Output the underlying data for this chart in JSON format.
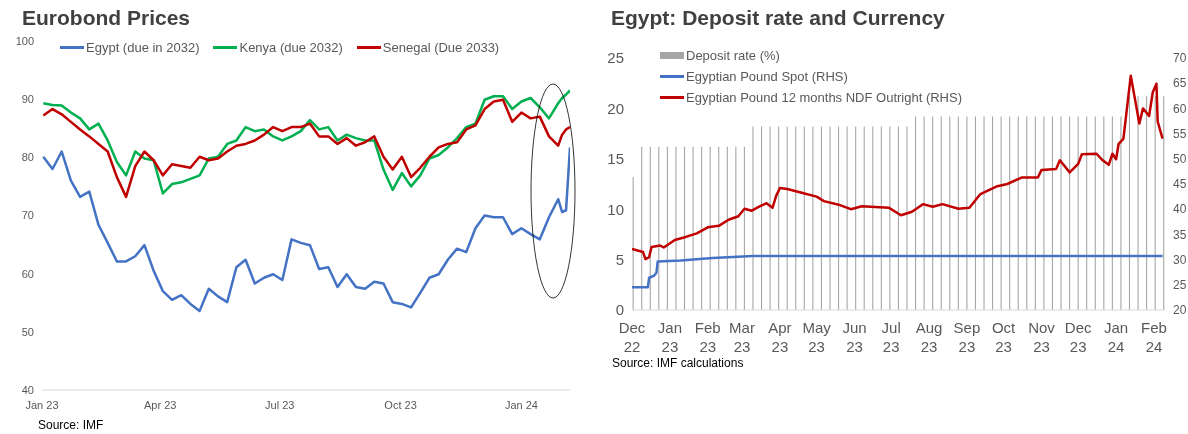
{
  "chart_data": [
    {
      "type": "line",
      "title": "Eurobond Prices",
      "x": [
        "2023-01-02",
        "2023-01-09",
        "2023-01-16",
        "2023-01-23",
        "2023-01-30",
        "2023-02-06",
        "2023-02-13",
        "2023-02-20",
        "2023-02-27",
        "2023-03-06",
        "2023-03-13",
        "2023-03-20",
        "2023-03-27",
        "2023-04-03",
        "2023-04-10",
        "2023-04-17",
        "2023-04-24",
        "2023-05-01",
        "2023-05-08",
        "2023-05-15",
        "2023-05-22",
        "2023-05-29",
        "2023-06-05",
        "2023-06-12",
        "2023-06-19",
        "2023-06-26",
        "2023-07-03",
        "2023-07-10",
        "2023-07-17",
        "2023-07-24",
        "2023-07-31",
        "2023-08-07",
        "2023-08-14",
        "2023-08-21",
        "2023-08-28",
        "2023-09-04",
        "2023-09-11",
        "2023-09-18",
        "2023-09-25",
        "2023-10-02",
        "2023-10-09",
        "2023-10-16",
        "2023-10-23",
        "2023-10-30",
        "2023-11-06",
        "2023-11-13",
        "2023-11-20",
        "2023-11-27",
        "2023-12-04",
        "2023-12-11",
        "2023-12-18",
        "2023-12-25",
        "2024-01-01",
        "2024-01-08",
        "2024-01-15",
        "2024-01-22",
        "2024-01-29",
        "2024-02-01",
        "2024-02-04",
        "2024-02-07"
      ],
      "series": [
        {
          "name": "Egypt (due in 2032)",
          "color": "#4472c4",
          "values": [
            80.1,
            78.0,
            81.0,
            76.0,
            73.2,
            74.1,
            68.4,
            65.3,
            62.1,
            62.1,
            63.0,
            64.9,
            60.5,
            57.0,
            55.5,
            56.3,
            54.8,
            53.6,
            57.4,
            56.1,
            55.1,
            61.1,
            62.4,
            58.3,
            59.3,
            59.9,
            58.9,
            65.9,
            65.3,
            64.9,
            60.8,
            61.1,
            57.7,
            59.9,
            57.7,
            57.4,
            58.6,
            58.3,
            55.1,
            54.8,
            54.2,
            56.7,
            59.3,
            59.9,
            62.4,
            64.3,
            63.7,
            67.8,
            70.0,
            69.7,
            69.7,
            66.8,
            67.8,
            66.8,
            65.9,
            69.7,
            72.8,
            70.6,
            70.9,
            81.7
          ]
        },
        {
          "name": "Kenya (due 2032)",
          "color": "#00b050",
          "values": [
            89.3,
            89.0,
            88.9,
            87.7,
            86.7,
            84.8,
            85.8,
            82.9,
            79.2,
            76.9,
            81.0,
            79.8,
            79.5,
            73.8,
            75.4,
            75.7,
            76.3,
            76.9,
            79.8,
            80.1,
            82.3,
            82.9,
            85.2,
            84.5,
            84.8,
            83.6,
            82.9,
            83.6,
            84.5,
            86.4,
            84.8,
            85.2,
            82.9,
            83.9,
            83.3,
            82.9,
            82.9,
            77.9,
            74.4,
            77.3,
            75.0,
            76.9,
            79.8,
            80.4,
            81.7,
            83.3,
            85.2,
            85.8,
            89.9,
            90.5,
            90.5,
            88.3,
            89.6,
            90.2,
            88.6,
            86.7,
            89.3,
            90.2,
            90.8,
            91.5
          ]
        },
        {
          "name": "Senegal (Due 2033)",
          "color": "#c00000",
          "values": [
            87.2,
            88.3,
            87.4,
            86.1,
            84.8,
            83.6,
            82.3,
            81.0,
            76.6,
            73.2,
            78.5,
            81.0,
            79.5,
            76.9,
            78.8,
            78.5,
            78.2,
            80.1,
            79.5,
            79.8,
            81.0,
            82.0,
            82.3,
            82.9,
            83.9,
            85.2,
            84.5,
            85.2,
            85.2,
            85.8,
            83.6,
            83.6,
            82.3,
            83.3,
            82.0,
            82.6,
            83.6,
            80.1,
            77.9,
            80.1,
            76.6,
            78.2,
            80.1,
            81.7,
            82.3,
            82.6,
            84.8,
            85.5,
            88.3,
            89.6,
            89.9,
            86.1,
            87.7,
            86.7,
            87.0,
            83.6,
            82.0,
            83.9,
            84.8,
            85.2
          ]
        }
      ],
      "xlim": [
        "2023-01-01",
        "2024-02-07"
      ],
      "xticks": [
        {
          "value": "2023-01-01",
          "label": "Jan 23"
        },
        {
          "value": "2023-04-01",
          "label": "Apr 23"
        },
        {
          "value": "2023-07-01",
          "label": "Jul 23"
        },
        {
          "value": "2023-10-01",
          "label": "Oct 23"
        },
        {
          "value": "2024-01-01",
          "label": "Jan 24"
        }
      ],
      "ylim": [
        40,
        100
      ],
      "yticks": [
        40,
        50,
        60,
        70,
        80,
        90,
        100
      ],
      "legend": "top",
      "annotations": [
        "Source: IMF"
      ]
    },
    {
      "type": "bar",
      "title": "Egypt: Deposit rate and Currency",
      "series": [
        {
          "name": "Deposit rate (%)",
          "color": "#a6a6a6",
          "x": [
            "2022-12-02",
            "2022-12-09",
            "2022-12-16",
            "2022-12-23",
            "2022-12-30",
            "2023-01-06",
            "2023-01-13",
            "2023-01-20",
            "2023-01-27",
            "2023-02-03",
            "2023-02-10",
            "2023-02-17",
            "2023-02-24",
            "2023-03-03",
            "2023-03-10",
            "2023-03-17",
            "2023-03-24",
            "2023-03-31",
            "2023-04-07",
            "2023-04-14",
            "2023-04-21",
            "2023-04-28",
            "2023-05-05",
            "2023-05-12",
            "2023-05-19",
            "2023-05-26",
            "2023-06-02",
            "2023-06-09",
            "2023-06-16",
            "2023-06-23",
            "2023-06-30",
            "2023-07-07",
            "2023-07-14",
            "2023-07-21",
            "2023-07-28",
            "2023-08-04",
            "2023-08-11",
            "2023-08-18",
            "2023-08-25",
            "2023-09-01",
            "2023-09-08",
            "2023-09-15",
            "2023-09-22",
            "2023-09-29",
            "2023-10-06",
            "2023-10-13",
            "2023-10-20",
            "2023-10-27",
            "2023-11-03",
            "2023-11-10",
            "2023-11-17",
            "2023-11-24",
            "2023-12-01",
            "2023-12-08",
            "2023-12-15",
            "2023-12-22",
            "2023-12-29",
            "2024-01-05",
            "2024-01-12",
            "2024-01-19",
            "2024-01-26",
            "2024-02-02",
            "2024-02-09"
          ],
          "values": [
            13.2,
            16.2,
            16.2,
            16.2,
            16.2,
            16.2,
            16.2,
            16.2,
            16.2,
            16.2,
            16.2,
            16.2,
            16.2,
            16.2,
            18.2,
            18.2,
            18.2,
            18.2,
            18.2,
            18.2,
            18.2,
            18.2,
            18.2,
            18.2,
            18.2,
            18.2,
            18.2,
            18.2,
            18.2,
            18.2,
            18.2,
            18.2,
            18.2,
            19.2,
            19.2,
            19.2,
            19.2,
            19.2,
            19.2,
            19.2,
            19.2,
            19.2,
            19.2,
            19.2,
            19.2,
            19.2,
            19.2,
            19.2,
            19.2,
            19.2,
            19.2,
            19.2,
            19.2,
            19.2,
            19.2,
            19.2,
            19.2,
            19.2,
            21.2,
            21.2,
            21.2,
            21.2,
            21.2
          ]
        },
        {
          "type": "line",
          "axis": "y2",
          "name": "Egyptian Pound Spot (RHS)",
          "color": "#4472c4",
          "x": [
            "2022-12-01",
            "2022-12-14",
            "2022-12-15",
            "2022-12-19",
            "2022-12-21",
            "2022-12-22",
            "2023-01-10",
            "2023-01-20",
            "2023-02-05",
            "2023-03-10",
            "2024-02-08"
          ],
          "values": [
            24.5,
            24.5,
            26.4,
            26.8,
            27.4,
            29.6,
            29.8,
            30.0,
            30.3,
            30.7,
            30.7
          ]
        },
        {
          "type": "line",
          "axis": "y2",
          "name": "Egyptian Pound 12 months NDF Outright (RHS)",
          "color": "#c00000",
          "x": [
            "2022-12-01",
            "2022-12-07",
            "2022-12-10",
            "2022-12-12",
            "2022-12-15",
            "2022-12-17",
            "2022-12-24",
            "2022-12-27",
            "2023-01-05",
            "2023-01-14",
            "2023-01-23",
            "2023-02-01",
            "2023-02-10",
            "2023-02-18",
            "2023-02-26",
            "2023-03-03",
            "2023-03-09",
            "2023-03-15",
            "2023-03-21",
            "2023-03-26",
            "2023-03-29",
            "2023-04-01",
            "2023-04-07",
            "2023-04-18",
            "2023-05-01",
            "2023-05-07",
            "2023-05-19",
            "2023-05-29",
            "2023-06-07",
            "2023-06-29",
            "2023-07-09",
            "2023-07-18",
            "2023-07-27",
            "2023-08-04",
            "2023-08-12",
            "2023-08-25",
            "2023-09-03",
            "2023-09-12",
            "2023-09-25",
            "2023-10-04",
            "2023-10-16",
            "2023-10-29",
            "2023-11-01",
            "2023-11-13",
            "2023-11-16",
            "2023-11-24",
            "2023-12-01",
            "2023-12-04",
            "2023-12-16",
            "2023-12-21",
            "2023-12-26",
            "2023-12-29",
            "2024-01-01",
            "2024-01-03",
            "2024-01-07",
            "2024-01-13",
            "2024-01-20",
            "2024-01-23",
            "2024-01-28",
            "2024-01-31",
            "2024-02-03",
            "2024-02-04",
            "2024-02-08"
          ],
          "values": [
            32.1,
            31.7,
            31.5,
            30.1,
            30.5,
            32.5,
            32.8,
            32.4,
            33.9,
            34.5,
            35.2,
            36.4,
            36.7,
            37.9,
            38.6,
            40.1,
            39.7,
            40.5,
            41.2,
            40.3,
            42.7,
            44.2,
            44.0,
            43.3,
            42.5,
            41.6,
            40.9,
            40.0,
            40.6,
            40.3,
            38.8,
            39.5,
            41.0,
            40.5,
            41.0,
            40.1,
            40.3,
            43.0,
            44.5,
            45.0,
            46.3,
            46.3,
            47.8,
            48.0,
            49.7,
            47.3,
            49.0,
            50.9,
            51.0,
            49.7,
            48.8,
            51.0,
            49.9,
            52.9,
            54.0,
            66.5,
            57.0,
            60.0,
            58.5,
            63.2,
            64.9,
            57.4,
            54.0
          ]
        }
      ],
      "xlim": [
        "2022-12-01",
        "2024-02-10"
      ],
      "xticks": [
        {
          "value": "2022-12-01",
          "label": "Dec 22"
        },
        {
          "value": "2023-01-01",
          "label": "Jan 23"
        },
        {
          "value": "2023-02-01",
          "label": "Feb 23"
        },
        {
          "value": "2023-03-01",
          "label": "Mar 23"
        },
        {
          "value": "2023-04-01",
          "label": "Apr 23"
        },
        {
          "value": "2023-05-01",
          "label": "May 23"
        },
        {
          "value": "2023-06-01",
          "label": "Jun 23"
        },
        {
          "value": "2023-07-01",
          "label": "Jul 23"
        },
        {
          "value": "2023-08-01",
          "label": "Aug 23"
        },
        {
          "value": "2023-09-01",
          "label": "Sep 23"
        },
        {
          "value": "2023-10-01",
          "label": "Oct 23"
        },
        {
          "value": "2023-11-01",
          "label": "Nov 23"
        },
        {
          "value": "2023-12-01",
          "label": "Dec 23"
        },
        {
          "value": "2024-01-01",
          "label": "Jan 24"
        },
        {
          "value": "2024-02-01",
          "label": "Feb 24"
        }
      ],
      "ylim": [
        0,
        25
      ],
      "yticks": [
        0,
        5,
        10,
        15,
        20,
        25
      ],
      "y2lim": [
        20,
        70
      ],
      "y2ticks": [
        20,
        25,
        30,
        35,
        40,
        45,
        50,
        55,
        60,
        65,
        70
      ],
      "legend": "top left",
      "annotations": [
        "Source: IMF calculations"
      ]
    }
  ]
}
